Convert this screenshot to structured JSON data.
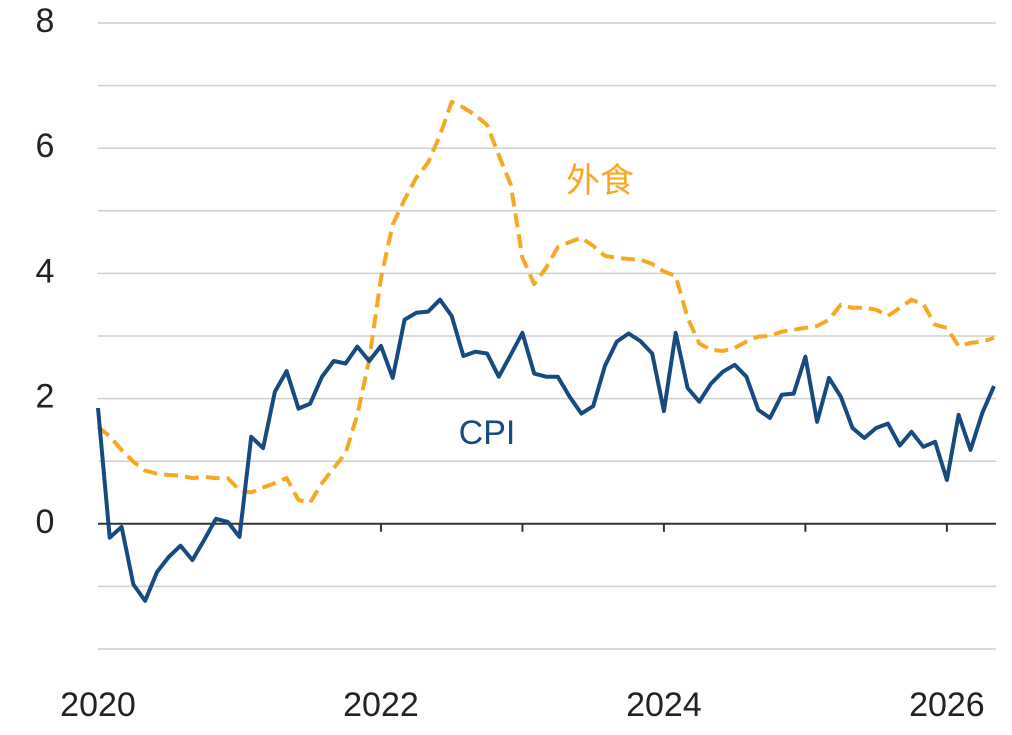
{
  "chart_data": {
    "type": "line",
    "x": [
      2020,
      2020.083,
      2020.167,
      2020.25,
      2020.333,
      2020.417,
      2020.5,
      2020.583,
      2020.667,
      2020.75,
      2020.833,
      2020.917,
      2021,
      2021.083,
      2021.167,
      2021.25,
      2021.333,
      2021.417,
      2021.5,
      2021.583,
      2021.667,
      2021.75,
      2021.833,
      2021.917,
      2022,
      2022.083,
      2022.167,
      2022.25,
      2022.333,
      2022.417,
      2022.5,
      2022.583,
      2022.667,
      2022.75,
      2022.833,
      2022.917,
      2023,
      2023.083,
      2023.167,
      2023.25,
      2023.333,
      2023.417,
      2023.5,
      2023.583,
      2023.667,
      2023.75,
      2023.833,
      2023.917,
      2024,
      2024.083,
      2024.167,
      2024.25,
      2024.333,
      2024.417,
      2024.5,
      2024.583,
      2024.667,
      2024.75,
      2024.833,
      2024.917,
      2025,
      2025.083,
      2025.167,
      2025.25,
      2025.333,
      2025.417,
      2025.5,
      2025.583,
      2025.667,
      2025.75,
      2025.833,
      2025.917,
      2026,
      2026.083,
      2026.167,
      2026.25,
      2026.333
    ],
    "series": [
      {
        "name": "外食",
        "color": "#f7a823",
        "dashed": true,
        "values": [
          1.55,
          1.4,
          1.18,
          0.99,
          0.85,
          0.8,
          0.78,
          0.77,
          0.73,
          0.75,
          0.73,
          0.73,
          0.54,
          0.5,
          0.58,
          0.65,
          0.73,
          0.38,
          0.34,
          0.65,
          0.89,
          1.13,
          1.74,
          2.62,
          3.93,
          4.78,
          5.18,
          5.53,
          5.77,
          6.21,
          6.74,
          6.65,
          6.53,
          6.37,
          5.89,
          5.42,
          4.25,
          3.83,
          4.09,
          4.42,
          4.5,
          4.57,
          4.44,
          4.28,
          4.25,
          4.23,
          4.22,
          4.15,
          4.03,
          3.96,
          3.29,
          2.88,
          2.78,
          2.76,
          2.81,
          2.91,
          2.99,
          3.0,
          3.07,
          3.1,
          3.13,
          3.16,
          3.26,
          3.5,
          3.45,
          3.45,
          3.42,
          3.32,
          3.45,
          3.58,
          3.51,
          3.18,
          3.13,
          2.84,
          2.89,
          2.91,
          2.97
        ]
      },
      {
        "name": "CPI",
        "color": "#174a7e",
        "dashed": false,
        "values": [
          1.85,
          -0.22,
          -0.05,
          -0.97,
          -1.23,
          -0.77,
          -0.53,
          -0.35,
          -0.58,
          -0.26,
          0.08,
          0.03,
          -0.21,
          1.39,
          1.21,
          2.11,
          2.44,
          1.84,
          1.92,
          2.35,
          2.6,
          2.56,
          2.83,
          2.6,
          2.84,
          2.33,
          3.26,
          3.37,
          3.39,
          3.58,
          3.32,
          2.68,
          2.75,
          2.72,
          2.35,
          2.7,
          3.05,
          2.4,
          2.35,
          2.35,
          2.03,
          1.76,
          1.88,
          2.52,
          2.91,
          3.04,
          2.92,
          2.72,
          1.8,
          3.05,
          2.17,
          1.95,
          2.24,
          2.43,
          2.54,
          2.35,
          1.82,
          1.69,
          2.06,
          2.08,
          2.67,
          1.63,
          2.33,
          2.03,
          1.53,
          1.37,
          1.53,
          1.6,
          1.25,
          1.47,
          1.23,
          1.31,
          0.7,
          1.74,
          1.18,
          1.77,
          2.2
        ]
      }
    ],
    "xlim": [
      2020,
      2026.333
    ],
    "xticks": [
      2020,
      2022,
      2024,
      2026
    ],
    "x_tick_marks": [
      2021,
      2022,
      2023,
      2024,
      2025,
      2026
    ],
    "ylim": [
      -2,
      8
    ],
    "yticks": [
      0,
      2,
      4,
      6,
      8
    ],
    "grid_yticks": [
      -2,
      -1,
      1,
      2,
      3,
      4,
      5,
      6,
      7,
      8
    ],
    "grid": true
  }
}
